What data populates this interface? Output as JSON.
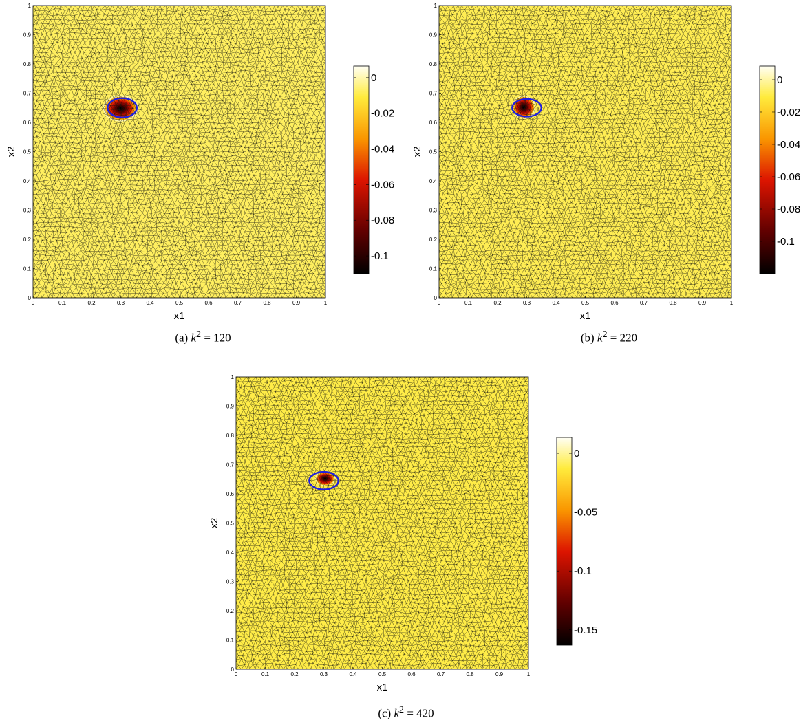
{
  "chart_data": [
    {
      "type": "heatmap",
      "caption_prefix": "(a)",
      "caption_math": "k",
      "caption_sup": "2",
      "caption_value": "= 120",
      "xlabel": "x1",
      "ylabel": "x2",
      "xlim": [
        0,
        1
      ],
      "ylim": [
        0,
        1
      ],
      "x_ticks": [
        "0",
        "0.1",
        "0.2",
        "0.3",
        "0.4",
        "0.5",
        "0.6",
        "0.7",
        "0.8",
        "0.9",
        "1"
      ],
      "y_ticks": [
        "0",
        "0.1",
        "0.2",
        "0.3",
        "0.4",
        "0.5",
        "0.6",
        "0.7",
        "0.8",
        "0.9",
        "1"
      ],
      "colorbar": {
        "min": -0.11,
        "max": 0.0065,
        "ticks": [
          0,
          -0.02,
          -0.04,
          -0.06,
          -0.08,
          -0.1
        ],
        "tick_labels": [
          "0",
          "-0.02",
          "-0.04",
          "-0.06",
          "-0.08",
          "-0.1"
        ]
      },
      "background_value": 0,
      "anomaly": {
        "center": [
          0.3,
          0.648
        ],
        "rx": 0.06,
        "ry": 0.045,
        "min_value": -0.11
      },
      "true_inclusion": {
        "center": [
          0.305,
          0.65
        ],
        "rx": 0.05,
        "ry": 0.033,
        "color": "#1f1fe0"
      },
      "mesh": "triangular",
      "colormap": "hot"
    },
    {
      "type": "heatmap",
      "caption_prefix": "(b)",
      "caption_math": "k",
      "caption_sup": "2",
      "caption_value": "= 220",
      "xlabel": "x1",
      "ylabel": "x2",
      "xlim": [
        0,
        1
      ],
      "ylim": [
        0,
        1
      ],
      "x_ticks": [
        "0",
        "0.1",
        "0.2",
        "0.3",
        "0.4",
        "0.5",
        "0.6",
        "0.7",
        "0.8",
        "0.9",
        "1"
      ],
      "y_ticks": [
        "0",
        "0.1",
        "0.2",
        "0.3",
        "0.4",
        "0.5",
        "0.6",
        "0.7",
        "0.8",
        "0.9",
        "1"
      ],
      "colorbar": {
        "min": -0.12,
        "max": 0.0085,
        "ticks": [
          0,
          -0.02,
          -0.04,
          -0.06,
          -0.08,
          -0.1
        ],
        "tick_labels": [
          "0",
          "-0.02",
          "-0.04",
          "-0.06",
          "-0.08",
          "-0.1"
        ]
      },
      "background_value": 0,
      "anomaly": {
        "center": [
          0.29,
          0.652
        ],
        "rx": 0.04,
        "ry": 0.04,
        "min_value": -0.12
      },
      "true_inclusion": {
        "center": [
          0.3,
          0.65
        ],
        "rx": 0.05,
        "ry": 0.03,
        "color": "#1f1fe0"
      },
      "mesh": "triangular",
      "colormap": "hot"
    },
    {
      "type": "heatmap",
      "caption_prefix": "(c)",
      "caption_math": "k",
      "caption_sup": "2",
      "caption_value": "= 420",
      "xlabel": "x1",
      "ylabel": "x2",
      "xlim": [
        0,
        1
      ],
      "ylim": [
        0,
        1
      ],
      "x_ticks": [
        "0",
        "0.1",
        "0.2",
        "0.3",
        "0.4",
        "0.5",
        "0.6",
        "0.7",
        "0.8",
        "0.9",
        "1"
      ],
      "y_ticks": [
        "0",
        "0.1",
        "0.2",
        "0.3",
        "0.4",
        "0.5",
        "0.6",
        "0.7",
        "0.8",
        "0.9",
        "1"
      ],
      "colorbar": {
        "min": -0.163,
        "max": 0.0135,
        "ticks": [
          0,
          -0.05,
          -0.1,
          -0.15
        ],
        "tick_labels": [
          "0",
          "-0.05",
          "-0.1",
          "-0.15"
        ]
      },
      "background_value": 0,
      "anomaly": {
        "center": [
          0.305,
          0.652
        ],
        "rx": 0.035,
        "ry": 0.025,
        "min_value": -0.163
      },
      "true_inclusion": {
        "center": [
          0.3,
          0.645
        ],
        "rx": 0.05,
        "ry": 0.03,
        "color": "#1f1fe0"
      },
      "mesh": "triangular",
      "colormap": "hot"
    }
  ]
}
